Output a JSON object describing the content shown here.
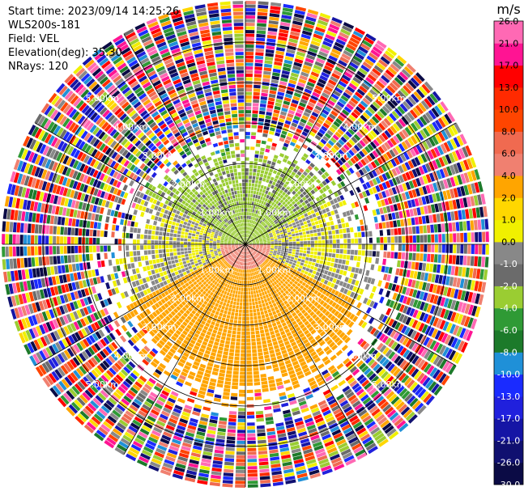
{
  "header": {
    "start_time": "Start time: 2023/09/14 14:25:26",
    "instrument": "WLS200s-181",
    "field": "Field: VEL",
    "elevation": "Elevation(deg): 35.30",
    "nrays": "NRays: 120"
  },
  "chart_data": {
    "type": "heatmap",
    "projection": "polar-ppi",
    "field": "VEL",
    "nrays": 120,
    "max_range_km": 6.0,
    "range_rings_km": [
      1,
      2,
      3,
      4,
      5
    ],
    "range_labels": [
      "1.00km",
      "2.00km",
      "3.00km",
      "4.00km",
      "5.00km"
    ],
    "radials_deg": [
      0,
      30,
      60,
      90,
      120,
      150,
      180,
      210,
      240,
      270,
      300,
      330
    ],
    "colorbar": {
      "unit": "m/s",
      "colors": [
        "#0b0b45",
        "#101070",
        "#1515a5",
        "#2020dd",
        "#1a2bff",
        "#1f90d8",
        "#1c7a2a",
        "#2f9a35",
        "#9acd32",
        "#6b6b6b",
        "#888888",
        "#f0f000",
        "#ffd700",
        "#ffa500",
        "#f08070",
        "#f06a50",
        "#ff4500",
        "#ff2a00",
        "#ff0000",
        "#ff1493",
        "#ff69b4"
      ],
      "tick_labels": [
        "-30.0",
        "-26.0",
        "-21.0",
        "-17.0",
        "-13.0",
        "-10.0",
        "-8.0",
        "-6.0",
        "-4.0",
        "-2.0",
        "-1.0",
        "0.0",
        "1.0",
        "2.0",
        "4.0",
        "6.0",
        "8.0",
        "10.0",
        "13.0",
        "17.0",
        "21.0",
        "26.0"
      ]
    },
    "data_summary": {
      "near_range_north_m_s": -3.0,
      "near_range_south_m_s": 2.5,
      "near_range_center_south_m_s": 5.0,
      "clear_range_limit_km": 3.0,
      "beyond_limit": "noise"
    }
  }
}
